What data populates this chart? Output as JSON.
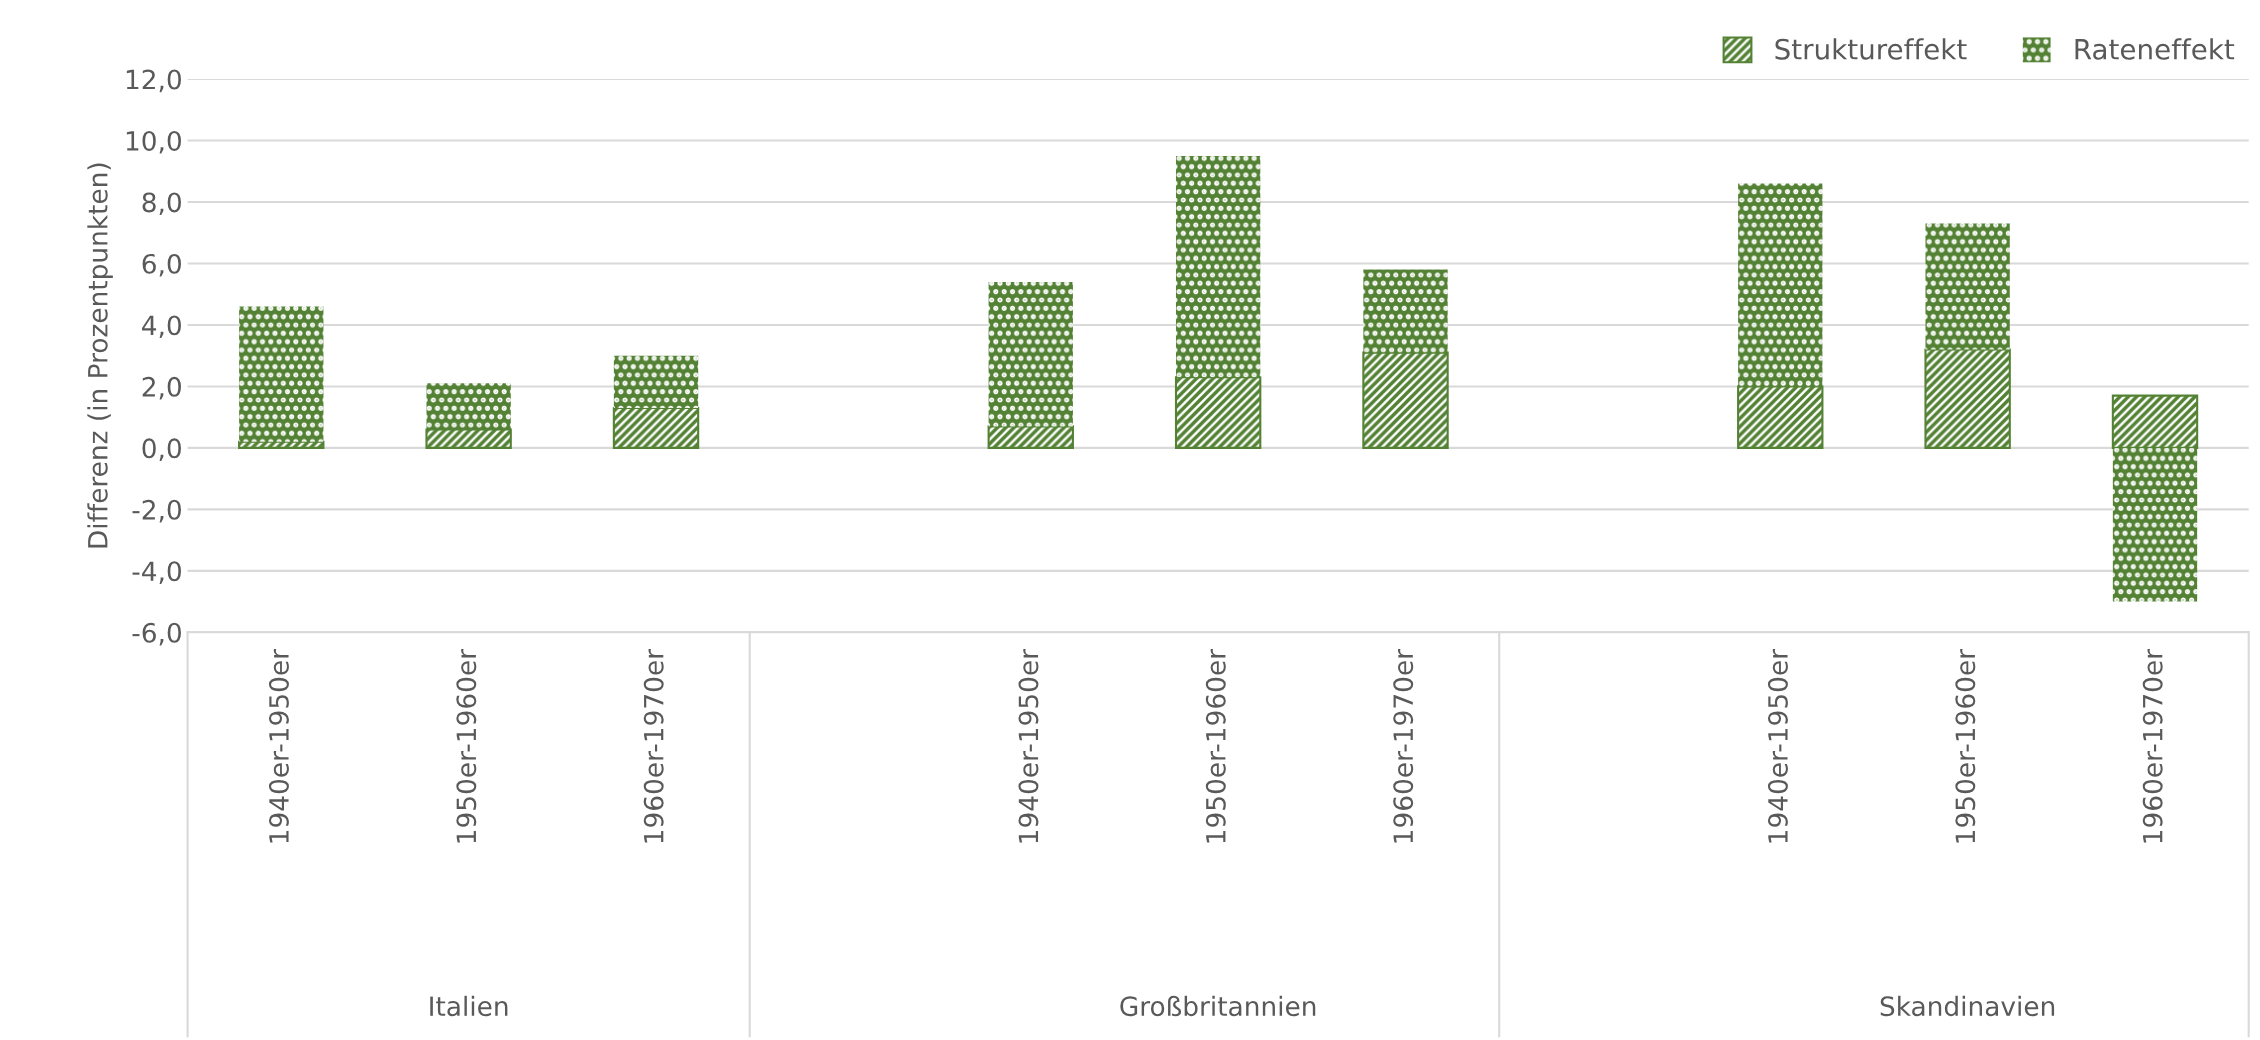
{
  "chart_data": {
    "type": "bar",
    "stacked": true,
    "ylabel": "Differenz (in Prozentpunkten)",
    "categories": [
      "1940er-1950er",
      "1950er-1960er",
      "1960er-1970er",
      null,
      "1940er-1950er",
      "1950er-1960er",
      "1960er-1970er",
      null,
      "1940er-1950er",
      "1950er-1960er",
      "1960er-1970er"
    ],
    "series": [
      {
        "name": "Struktureffekt",
        "color": "#548235",
        "values": [
          0.2,
          0.6,
          1.3,
          null,
          0.7,
          2.3,
          3.1,
          null,
          2.0,
          3.2,
          1.7
        ]
      },
      {
        "name": "Rateneffekt",
        "color": "#548235",
        "values": [
          4.4,
          1.5,
          1.7,
          null,
          4.7,
          7.2,
          2.7,
          null,
          6.6,
          4.1,
          -5.0
        ]
      }
    ],
    "ylim": [
      -6,
      12
    ],
    "yticks": [
      {
        "value": -6,
        "label": "-6,0"
      },
      {
        "value": -4,
        "label": "-4,0"
      },
      {
        "value": -2,
        "label": "-2,0"
      },
      {
        "value": 0,
        "label": "0,0"
      },
      {
        "value": 2,
        "label": "2,0"
      },
      {
        "value": 4,
        "label": "4,0"
      },
      {
        "value": 6,
        "label": "6,0"
      },
      {
        "value": 8,
        "label": "8,0"
      },
      {
        "value": 10,
        "label": "10,0"
      },
      {
        "value": 12,
        "label": "12,0"
      }
    ],
    "grid": "y",
    "legend": "top right",
    "annotations": [
      "Italien",
      "Großbritannien",
      "Skandinavien"
    ]
  }
}
